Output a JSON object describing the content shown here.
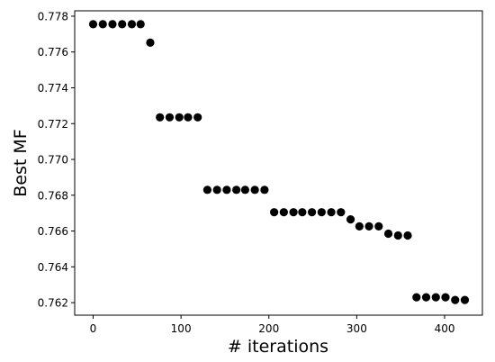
{
  "chart_data": {
    "type": "scatter",
    "title": "",
    "xlabel": "# iterations",
    "ylabel": "Best MF",
    "xlim": [
      -21,
      443
    ],
    "ylim": [
      0.7613,
      0.7783
    ],
    "xticks": [
      0,
      100,
      200,
      300,
      400
    ],
    "yticks": [
      0.762,
      0.764,
      0.766,
      0.768,
      0.77,
      0.772,
      0.774,
      0.776,
      0.778
    ],
    "ytick_labels": [
      "0.762",
      "0.764",
      "0.766",
      "0.768",
      "0.770",
      "0.772",
      "0.774",
      "0.776",
      "0.778"
    ],
    "grid": false,
    "marker_color": "#000000",
    "points": [
      {
        "x": 0,
        "y": 0.77755
      },
      {
        "x": 11,
        "y": 0.77755
      },
      {
        "x": 22,
        "y": 0.77755
      },
      {
        "x": 33,
        "y": 0.77755
      },
      {
        "x": 44,
        "y": 0.77755
      },
      {
        "x": 54,
        "y": 0.77755
      },
      {
        "x": 65,
        "y": 0.77652
      },
      {
        "x": 76,
        "y": 0.77235
      },
      {
        "x": 87,
        "y": 0.77235
      },
      {
        "x": 98,
        "y": 0.77235
      },
      {
        "x": 108,
        "y": 0.77235
      },
      {
        "x": 119,
        "y": 0.77235
      },
      {
        "x": 130,
        "y": 0.7683
      },
      {
        "x": 141,
        "y": 0.7683
      },
      {
        "x": 152,
        "y": 0.7683
      },
      {
        "x": 163,
        "y": 0.7683
      },
      {
        "x": 173,
        "y": 0.7683
      },
      {
        "x": 184,
        "y": 0.7683
      },
      {
        "x": 195,
        "y": 0.7683
      },
      {
        "x": 206,
        "y": 0.76705
      },
      {
        "x": 217,
        "y": 0.76705
      },
      {
        "x": 228,
        "y": 0.76705
      },
      {
        "x": 238,
        "y": 0.76705
      },
      {
        "x": 249,
        "y": 0.76705
      },
      {
        "x": 260,
        "y": 0.76705
      },
      {
        "x": 271,
        "y": 0.76705
      },
      {
        "x": 282,
        "y": 0.76705
      },
      {
        "x": 293,
        "y": 0.76665
      },
      {
        "x": 303,
        "y": 0.76626
      },
      {
        "x": 314,
        "y": 0.76626
      },
      {
        "x": 325,
        "y": 0.76626
      },
      {
        "x": 336,
        "y": 0.76585
      },
      {
        "x": 347,
        "y": 0.76575
      },
      {
        "x": 358,
        "y": 0.76575
      },
      {
        "x": 368,
        "y": 0.7623
      },
      {
        "x": 379,
        "y": 0.7623
      },
      {
        "x": 390,
        "y": 0.7623
      },
      {
        "x": 401,
        "y": 0.7623
      },
      {
        "x": 412,
        "y": 0.76215
      },
      {
        "x": 423,
        "y": 0.76215
      }
    ]
  }
}
